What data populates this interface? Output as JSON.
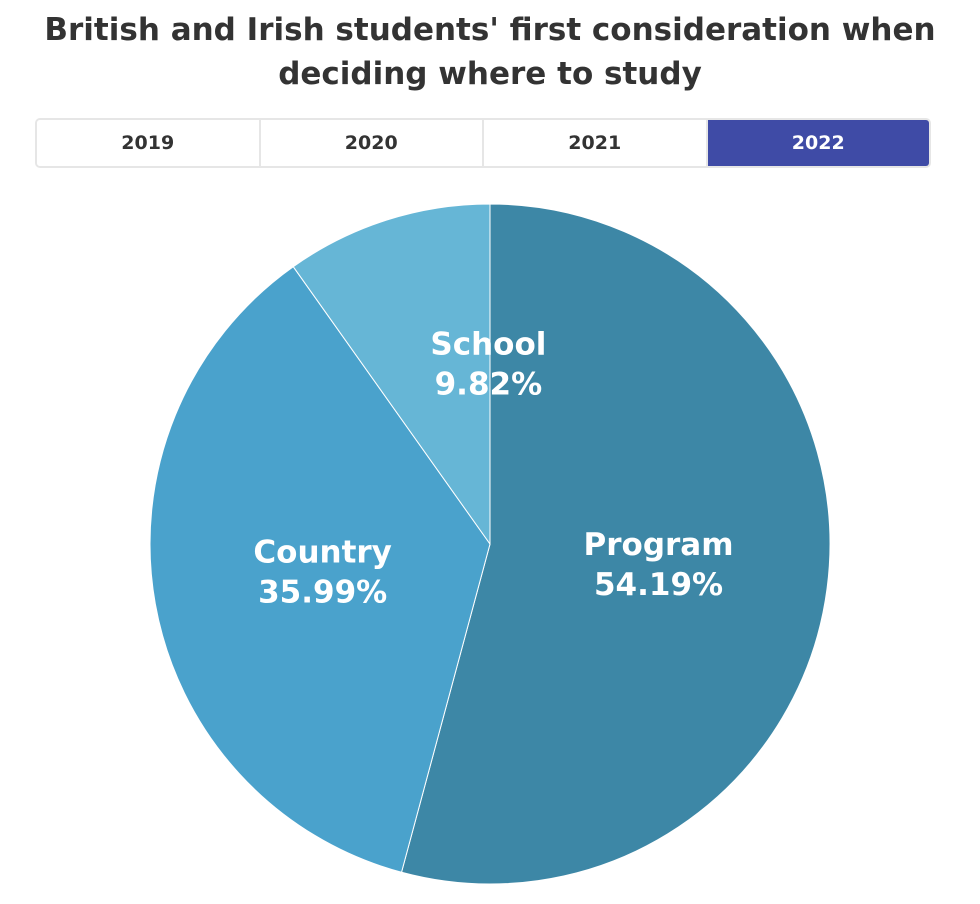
{
  "tabs": {
    "items": [
      "2019",
      "2020",
      "2021",
      "2022"
    ],
    "selected": 3
  },
  "chart_data": {
    "type": "pie",
    "title": "British and Irish students' first consideration when deciding where to study",
    "labels": [
      "Program",
      "Country",
      "School"
    ],
    "values": [
      54.19,
      35.99,
      9.82
    ],
    "value_labels": [
      "54.19%",
      "35.99%",
      "9.82%"
    ],
    "colors": [
      "#3d87a6",
      "#4aa2cc",
      "#66b6d6"
    ]
  }
}
